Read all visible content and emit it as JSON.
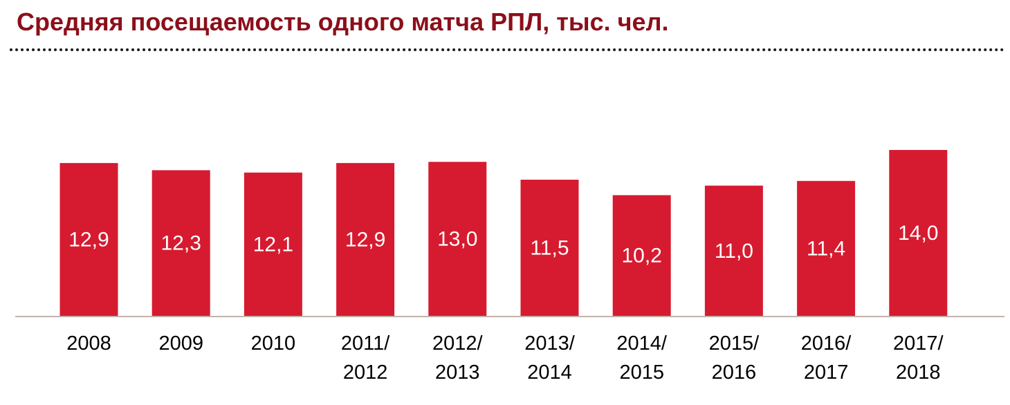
{
  "colors": {
    "title": "#8b0f1a",
    "bar": "#d61b30",
    "bar_label": "#ffffff",
    "axis": "#c4b2aa",
    "tick_label": "#000000"
  },
  "chart_data": {
    "type": "bar",
    "title": "Средняя посещаемость одного матча РПЛ, тыс. чел.",
    "categories": [
      [
        "2008"
      ],
      [
        "2009"
      ],
      [
        "2010"
      ],
      [
        "2011/",
        "2012"
      ],
      [
        "2012/",
        "2013"
      ],
      [
        "2013/",
        "2014"
      ],
      [
        "2014/",
        "2015"
      ],
      [
        "2015/",
        "2016"
      ],
      [
        "2016/",
        "2017"
      ],
      [
        "2017/",
        "2018"
      ]
    ],
    "values": [
      12.9,
      12.3,
      12.1,
      12.9,
      13.0,
      11.5,
      10.2,
      11.0,
      11.4,
      14.0
    ],
    "value_labels": [
      "12,9",
      "12,3",
      "12,1",
      "12,9",
      "13,0",
      "11,5",
      "10,2",
      "11,0",
      "11,4",
      "14,0"
    ],
    "ylim": [
      0,
      14
    ],
    "grid": false,
    "legend": "none"
  }
}
